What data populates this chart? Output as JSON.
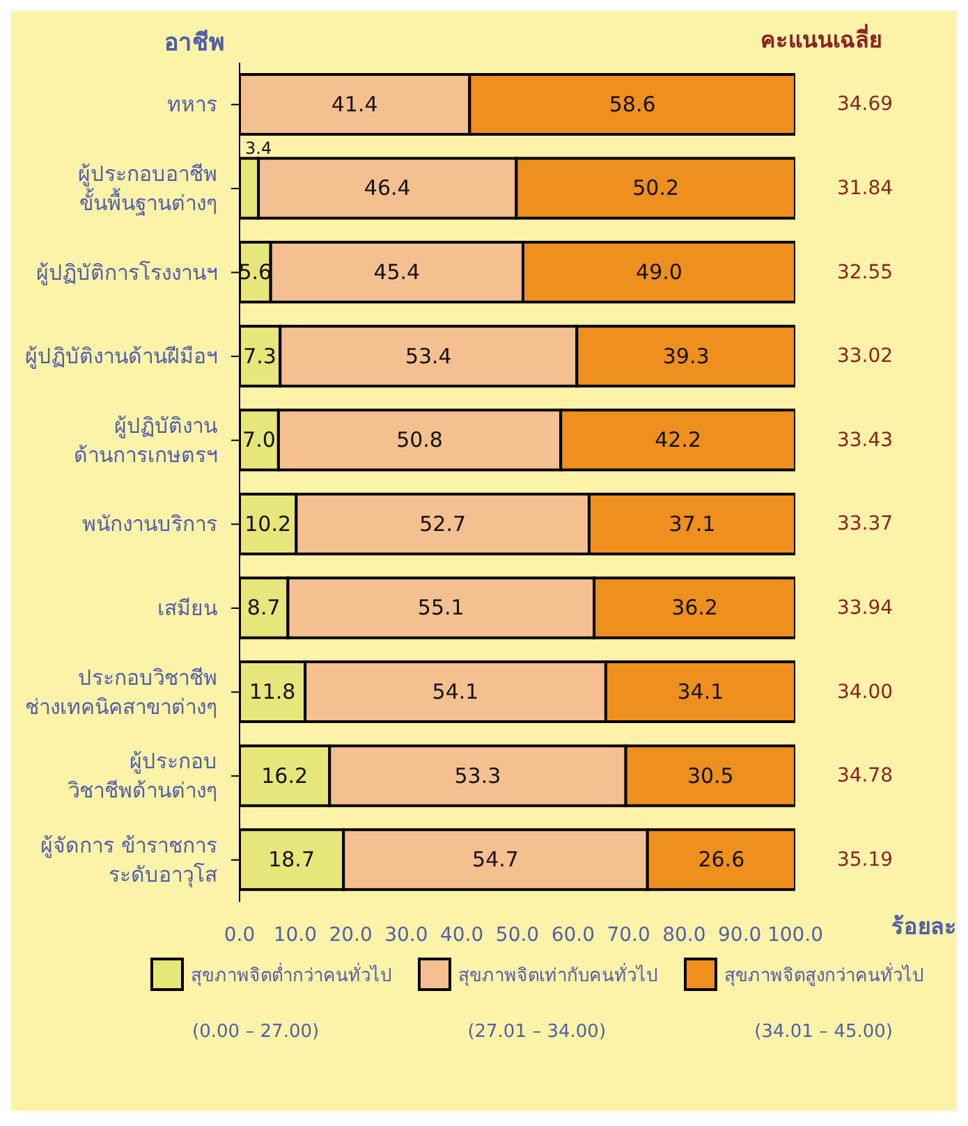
{
  "chart_data": {
    "type": "bar",
    "orientation": "horizontal",
    "stacked": true,
    "ylabel": "อาชีพ",
    "y2label": "คะแนนเฉลี่ย",
    "xlabel": "ร้อยละ",
    "categories": [
      "ทหาร",
      "ผู้ประกอบอาชีพ\nขั้นพื้นฐานต่างๆ",
      "ผู้ปฏิบัติการโรงงานฯ",
      "ผู้ปฏิบัติงานด้านฝีมือฯ",
      "ผู้ปฏิบัติงาน\nด้านการเกษตรฯ",
      "พนักงานบริการ",
      "เสมียน",
      "ประกอบวิชาชีพ\nช่างเทคนิคสาขาต่างๆ",
      "ผู้ประกอบ\nวิชาชีพด้านต่างๆ",
      "ผู้จัดการ ข้าราชการ\nระดับอาวุโส"
    ],
    "series": [
      {
        "name": "สุขภาพจิตต่ำกว่าคนทั่วไป",
        "color": "#e6e67a",
        "values": [
          null,
          3.4,
          5.6,
          7.3,
          7.0,
          10.2,
          8.7,
          11.8,
          16.2,
          18.7
        ],
        "value_labels": [
          null,
          "3.4",
          "5.6",
          "7.3",
          "7.0",
          "10.2",
          "8.7",
          "11.8",
          "16.2",
          "18.7"
        ]
      },
      {
        "name": "สุขภาพจิตเท่ากับคนทั่วไป",
        "color": "#f5c090",
        "values": [
          41.4,
          46.4,
          45.4,
          53.4,
          50.8,
          52.7,
          55.1,
          54.1,
          53.3,
          54.7
        ],
        "value_labels": [
          "41.4",
          "46.4",
          "45.4",
          "53.4",
          "50.8",
          "52.7",
          "55.1",
          "54.1",
          "53.3",
          "54.7"
        ]
      },
      {
        "name": "สุขภาพจิตสูงกว่าคนทั่วไป",
        "color": "#ef901e",
        "values": [
          58.6,
          50.2,
          49.0,
          39.3,
          42.2,
          37.1,
          36.2,
          34.1,
          30.5,
          26.6
        ],
        "value_labels": [
          "58.6",
          "50.2",
          "49.0",
          "39.3",
          "42.2",
          "37.1",
          "36.2",
          "34.1",
          "30.5",
          "26.6"
        ]
      }
    ],
    "xlim": [
      0,
      100
    ],
    "xticks": [
      {
        "value": 0,
        "label": "0.0"
      },
      {
        "value": 10,
        "label": "10.0"
      },
      {
        "value": 20,
        "label": "20.0"
      },
      {
        "value": 30,
        "label": "30.0"
      },
      {
        "value": 40,
        "label": "40.0"
      },
      {
        "value": 50,
        "label": "50.0"
      },
      {
        "value": 60,
        "label": "60.0"
      },
      {
        "value": 70,
        "label": "70.0"
      },
      {
        "value": 80,
        "label": "80.0"
      },
      {
        "value": 90,
        "label": "90.0"
      },
      {
        "value": 100,
        "label": "100.0"
      }
    ],
    "annotations": [
      "34.69",
      "31.84",
      "32.55",
      "33.02",
      "33.43",
      "33.37",
      "33.94",
      "34.00",
      "34.78",
      "35.19",
      "(0.00 – 27.00)",
      "(27.01 – 34.00)",
      "(34.01 – 45.00)"
    ],
    "grid": false,
    "legend": "bottom"
  }
}
